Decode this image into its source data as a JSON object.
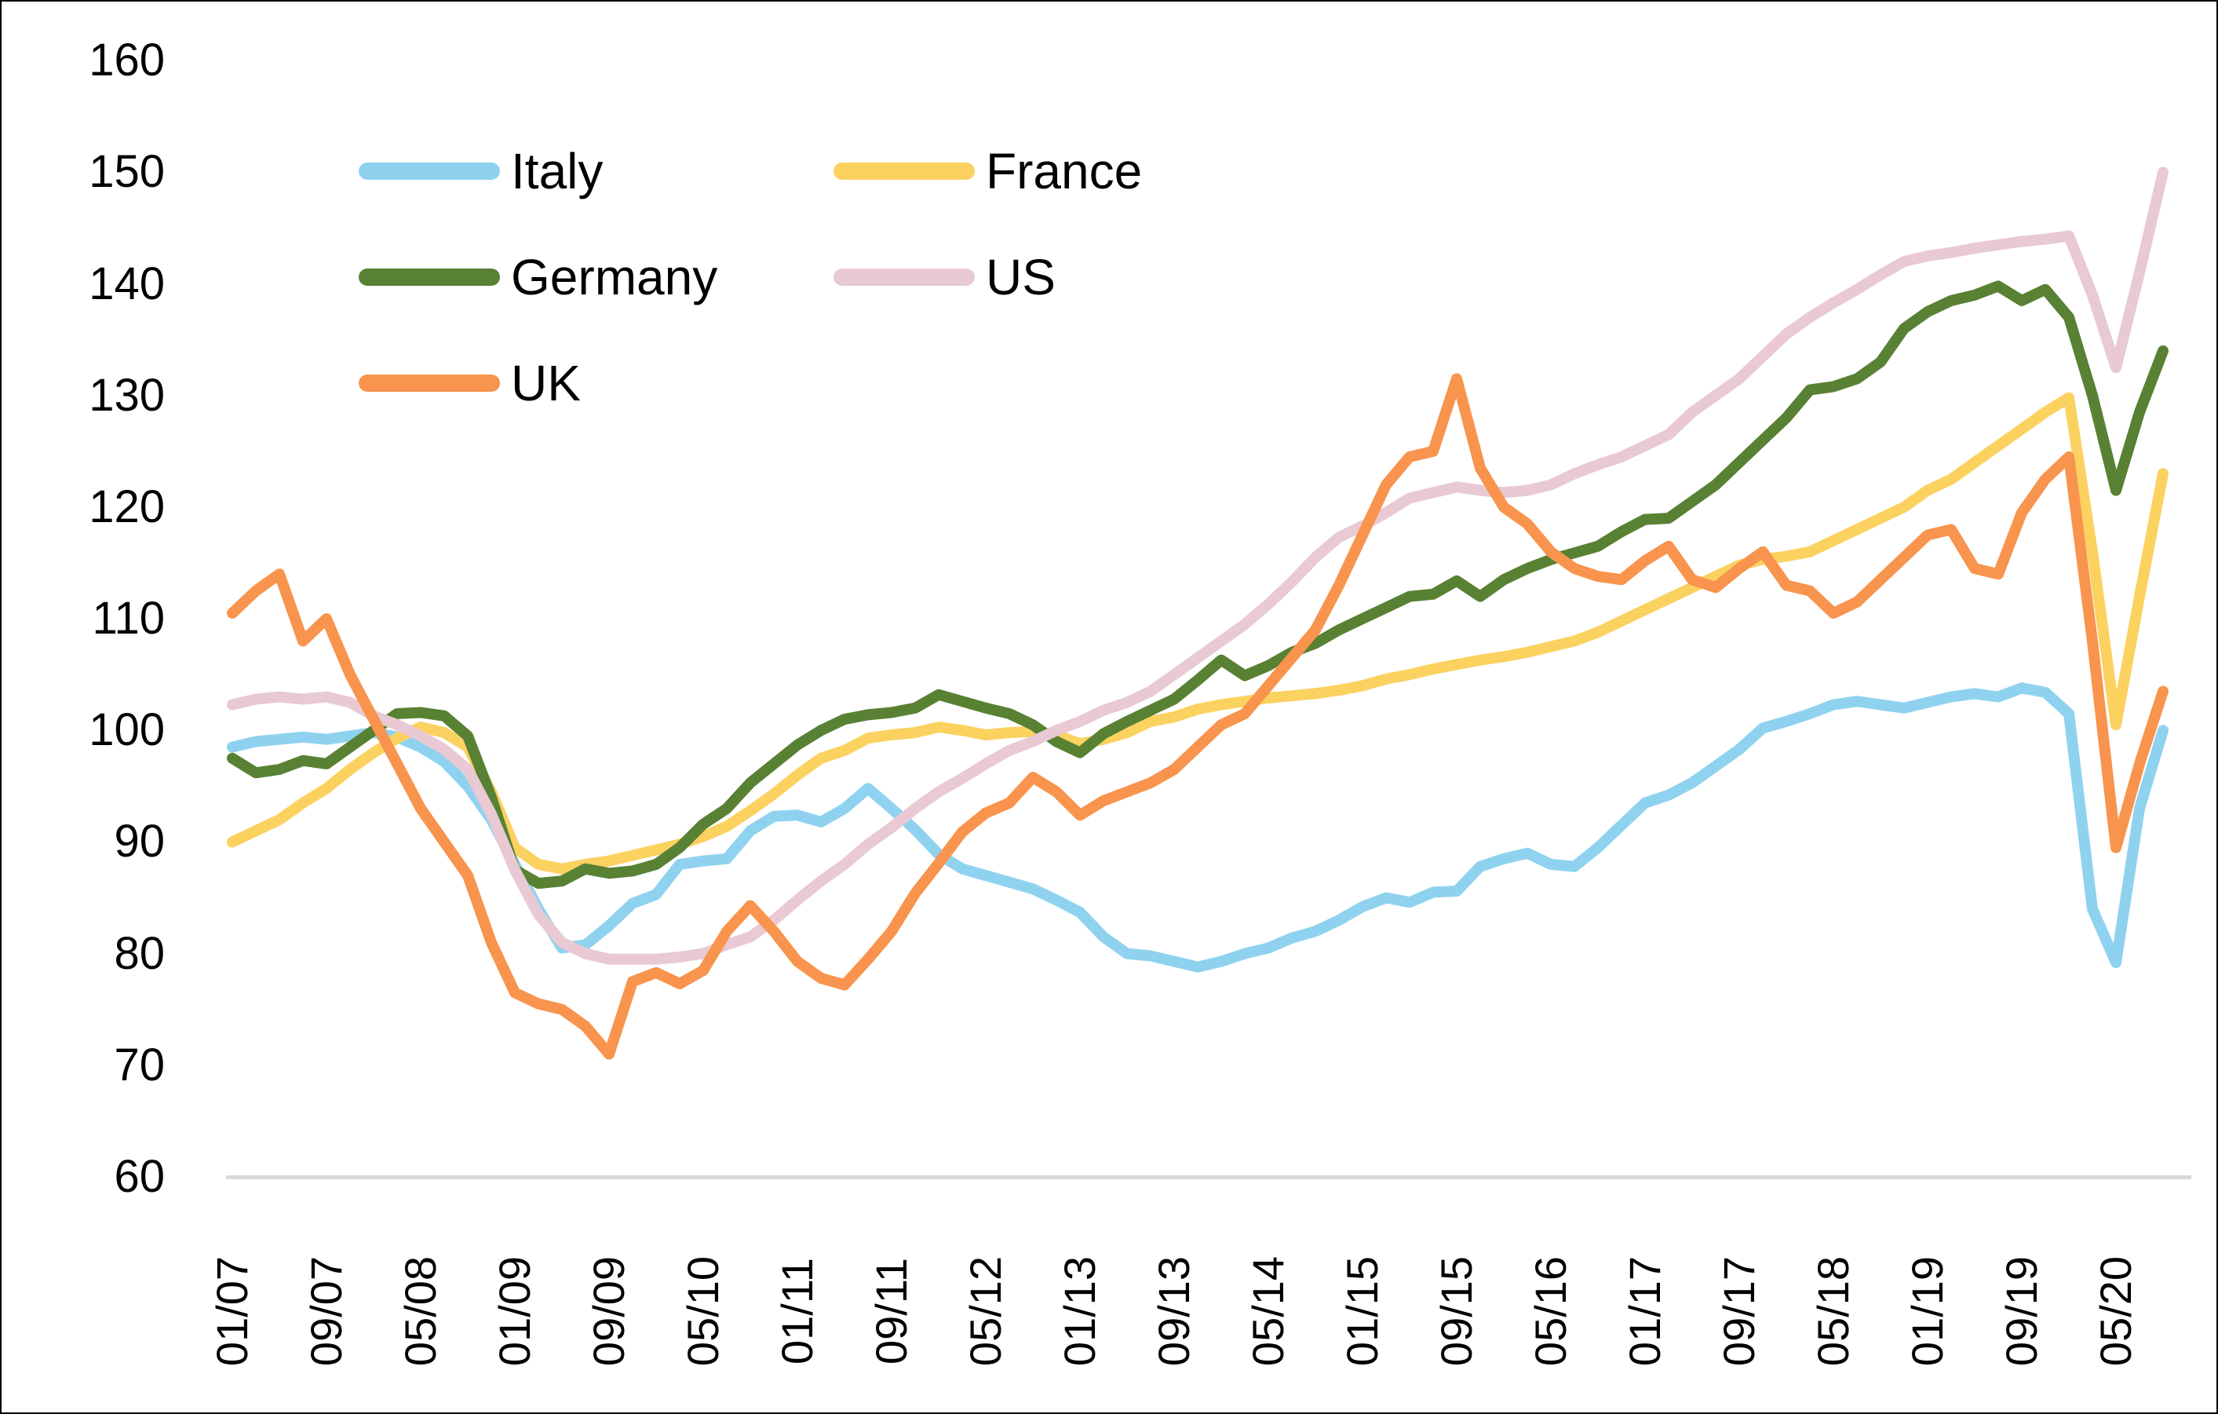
{
  "chart_data": {
    "type": "line",
    "title": "",
    "xlabel": "",
    "ylabel": "",
    "background_color": "#FFFFFF",
    "axis_line_color": "#D9D9D9",
    "grid": false,
    "legend_position": "top-left-inside",
    "y_axis": {
      "min": 60,
      "max": 160,
      "tick_step": 10,
      "ticks": [
        160,
        150,
        140,
        130,
        120,
        110,
        100,
        90,
        80,
        70,
        60
      ]
    },
    "x_axis": {
      "start_month": "01/07",
      "end_month": "09/20",
      "sample_step_months": 2,
      "tick_labels": [
        {
          "label": "01/07",
          "month_index": 0
        },
        {
          "label": "09/07",
          "month_index": 8
        },
        {
          "label": "05/08",
          "month_index": 16
        },
        {
          "label": "01/09",
          "month_index": 24
        },
        {
          "label": "09/09",
          "month_index": 32
        },
        {
          "label": "05/10",
          "month_index": 40
        },
        {
          "label": "01/11",
          "month_index": 48
        },
        {
          "label": "09/11",
          "month_index": 56
        },
        {
          "label": "05/12",
          "month_index": 64
        },
        {
          "label": "01/13",
          "month_index": 72
        },
        {
          "label": "09/13",
          "month_index": 80
        },
        {
          "label": "05/14",
          "month_index": 88
        },
        {
          "label": "01/15",
          "month_index": 96
        },
        {
          "label": "09/15",
          "month_index": 104
        },
        {
          "label": "05/16",
          "month_index": 112
        },
        {
          "label": "01/17",
          "month_index": 120
        },
        {
          "label": "09/17",
          "month_index": 128
        },
        {
          "label": "05/18",
          "month_index": 136
        },
        {
          "label": "01/19",
          "month_index": 144
        },
        {
          "label": "09/19",
          "month_index": 152
        },
        {
          "label": "05/20",
          "month_index": 160
        }
      ]
    },
    "legend_order": [
      "Italy",
      "France",
      "Germany",
      "US",
      "UK"
    ],
    "series": [
      {
        "name": "Italy",
        "color": "#8FD2F0",
        "values": [
          98.5,
          99.0,
          99.2,
          99.4,
          99.2,
          99.5,
          99.8,
          99.4,
          98.5,
          97.2,
          95.0,
          92.0,
          88.0,
          84.0,
          80.5,
          80.8,
          82.5,
          84.5,
          85.3,
          88.0,
          88.3,
          88.5,
          91.0,
          92.3,
          92.4,
          91.8,
          93.0,
          94.8,
          93.0,
          91.1,
          88.9,
          87.6,
          87.0,
          86.4,
          85.8,
          84.8,
          83.7,
          81.5,
          80.0,
          79.8,
          79.3,
          78.8,
          79.3,
          80.0,
          80.5,
          81.4,
          82.0,
          83.0,
          84.2,
          85.0,
          84.6,
          85.5,
          85.6,
          87.8,
          88.5,
          89.0,
          88.0,
          87.8,
          89.5,
          91.5,
          93.5,
          94.2,
          95.3,
          96.8,
          98.3,
          100.2,
          100.8,
          101.5,
          102.3,
          102.6,
          102.3,
          102.0,
          102.5,
          103.0,
          103.3,
          103.0,
          103.8,
          103.4,
          101.5,
          84.0,
          79.2,
          93.0,
          100.0
        ]
      },
      {
        "name": "France",
        "color": "#FBD160",
        "values": [
          90.0,
          91.0,
          92.0,
          93.5,
          94.8,
          96.5,
          98.0,
          99.3,
          100.3,
          99.8,
          98.5,
          94.5,
          89.5,
          88.0,
          87.6,
          88.0,
          88.3,
          88.8,
          89.3,
          89.8,
          90.5,
          91.4,
          92.8,
          94.3,
          96.0,
          97.5,
          98.2,
          99.3,
          99.6,
          99.8,
          100.3,
          100.0,
          99.6,
          99.8,
          99.9,
          99.6,
          98.8,
          99.2,
          99.8,
          100.8,
          101.2,
          101.9,
          102.3,
          102.6,
          102.9,
          103.1,
          103.3,
          103.6,
          104.0,
          104.6,
          105.0,
          105.5,
          105.9,
          106.3,
          106.6,
          107.0,
          107.5,
          108.0,
          108.8,
          109.8,
          110.8,
          111.8,
          112.8,
          113.8,
          114.8,
          115.3,
          115.6,
          116.0,
          117.0,
          118.0,
          119.0,
          120.0,
          121.5,
          122.5,
          124.0,
          125.5,
          127.0,
          128.5,
          129.8,
          116.0,
          100.5,
          112.0,
          123.0
        ]
      },
      {
        "name": "Germany",
        "color": "#588133",
        "values": [
          97.5,
          96.2,
          96.5,
          97.3,
          97.0,
          98.5,
          100.0,
          101.5,
          101.6,
          101.3,
          99.5,
          94.0,
          87.5,
          86.3,
          86.5,
          87.6,
          87.2,
          87.4,
          88.0,
          89.5,
          91.6,
          93.0,
          95.3,
          97.0,
          98.7,
          100.0,
          101.0,
          101.4,
          101.6,
          102.0,
          103.2,
          102.6,
          102.0,
          101.5,
          100.5,
          99.0,
          98.0,
          99.7,
          100.8,
          101.8,
          102.8,
          104.5,
          106.3,
          104.9,
          105.8,
          107.0,
          107.8,
          109.0,
          110.0,
          111.0,
          112.0,
          112.2,
          113.4,
          112.0,
          113.5,
          114.5,
          115.3,
          115.9,
          116.5,
          117.8,
          118.9,
          119.0,
          120.5,
          122.0,
          124.0,
          126.0,
          128.0,
          130.5,
          130.8,
          131.5,
          133.0,
          136.0,
          137.5,
          138.5,
          139.0,
          139.8,
          138.5,
          139.5,
          137.0,
          130.0,
          121.5,
          128.5,
          134.0
        ]
      },
      {
        "name": "US",
        "color": "#E9C9D4",
        "values": [
          102.3,
          102.8,
          103.0,
          102.8,
          103.0,
          102.5,
          101.3,
          100.5,
          99.5,
          98.3,
          96.5,
          92.5,
          87.5,
          83.5,
          81.0,
          80.0,
          79.5,
          79.5,
          79.5,
          79.7,
          80.0,
          80.8,
          81.5,
          83.0,
          84.8,
          86.5,
          88.0,
          89.8,
          91.3,
          93.0,
          94.5,
          95.7,
          97.0,
          98.2,
          99.0,
          100.0,
          100.8,
          101.8,
          102.5,
          103.5,
          105.0,
          106.5,
          108.0,
          109.5,
          111.3,
          113.3,
          115.5,
          117.3,
          118.3,
          119.5,
          120.8,
          121.3,
          121.8,
          121.5,
          121.3,
          121.5,
          122.0,
          123.0,
          123.8,
          124.5,
          125.5,
          126.5,
          128.5,
          130.0,
          131.5,
          133.5,
          135.5,
          137.0,
          138.3,
          139.5,
          140.8,
          142.0,
          142.5,
          142.8,
          143.2,
          143.5,
          143.8,
          144.0,
          144.3,
          139.0,
          132.5,
          141.0,
          150.0
        ]
      },
      {
        "name": "UK",
        "color": "#F8944D",
        "values": [
          110.5,
          112.5,
          114.0,
          108.0,
          110.0,
          105.0,
          101.0,
          97.0,
          93.0,
          90.0,
          87.0,
          81.0,
          76.5,
          75.5,
          75.0,
          73.5,
          71.0,
          77.5,
          78.3,
          77.3,
          78.5,
          82.0,
          84.3,
          82.0,
          79.3,
          77.8,
          77.2,
          79.5,
          82.0,
          85.4,
          88.1,
          90.9,
          92.6,
          93.5,
          95.8,
          94.5,
          92.4,
          93.7,
          94.5,
          95.3,
          96.5,
          98.5,
          100.5,
          101.5,
          104.0,
          106.5,
          109.0,
          113.0,
          117.5,
          122.0,
          124.5,
          125.0,
          131.5,
          123.5,
          120.0,
          118.5,
          116.0,
          114.5,
          113.8,
          113.5,
          115.2,
          116.5,
          113.5,
          112.8,
          114.5,
          116.0,
          113.0,
          112.5,
          110.5,
          111.5,
          113.5,
          115.5,
          117.5,
          118.0,
          114.5,
          114.0,
          119.5,
          122.5,
          124.5,
          108.0,
          89.5,
          97.0,
          103.5
        ]
      }
    ],
    "line_width": 14
  }
}
